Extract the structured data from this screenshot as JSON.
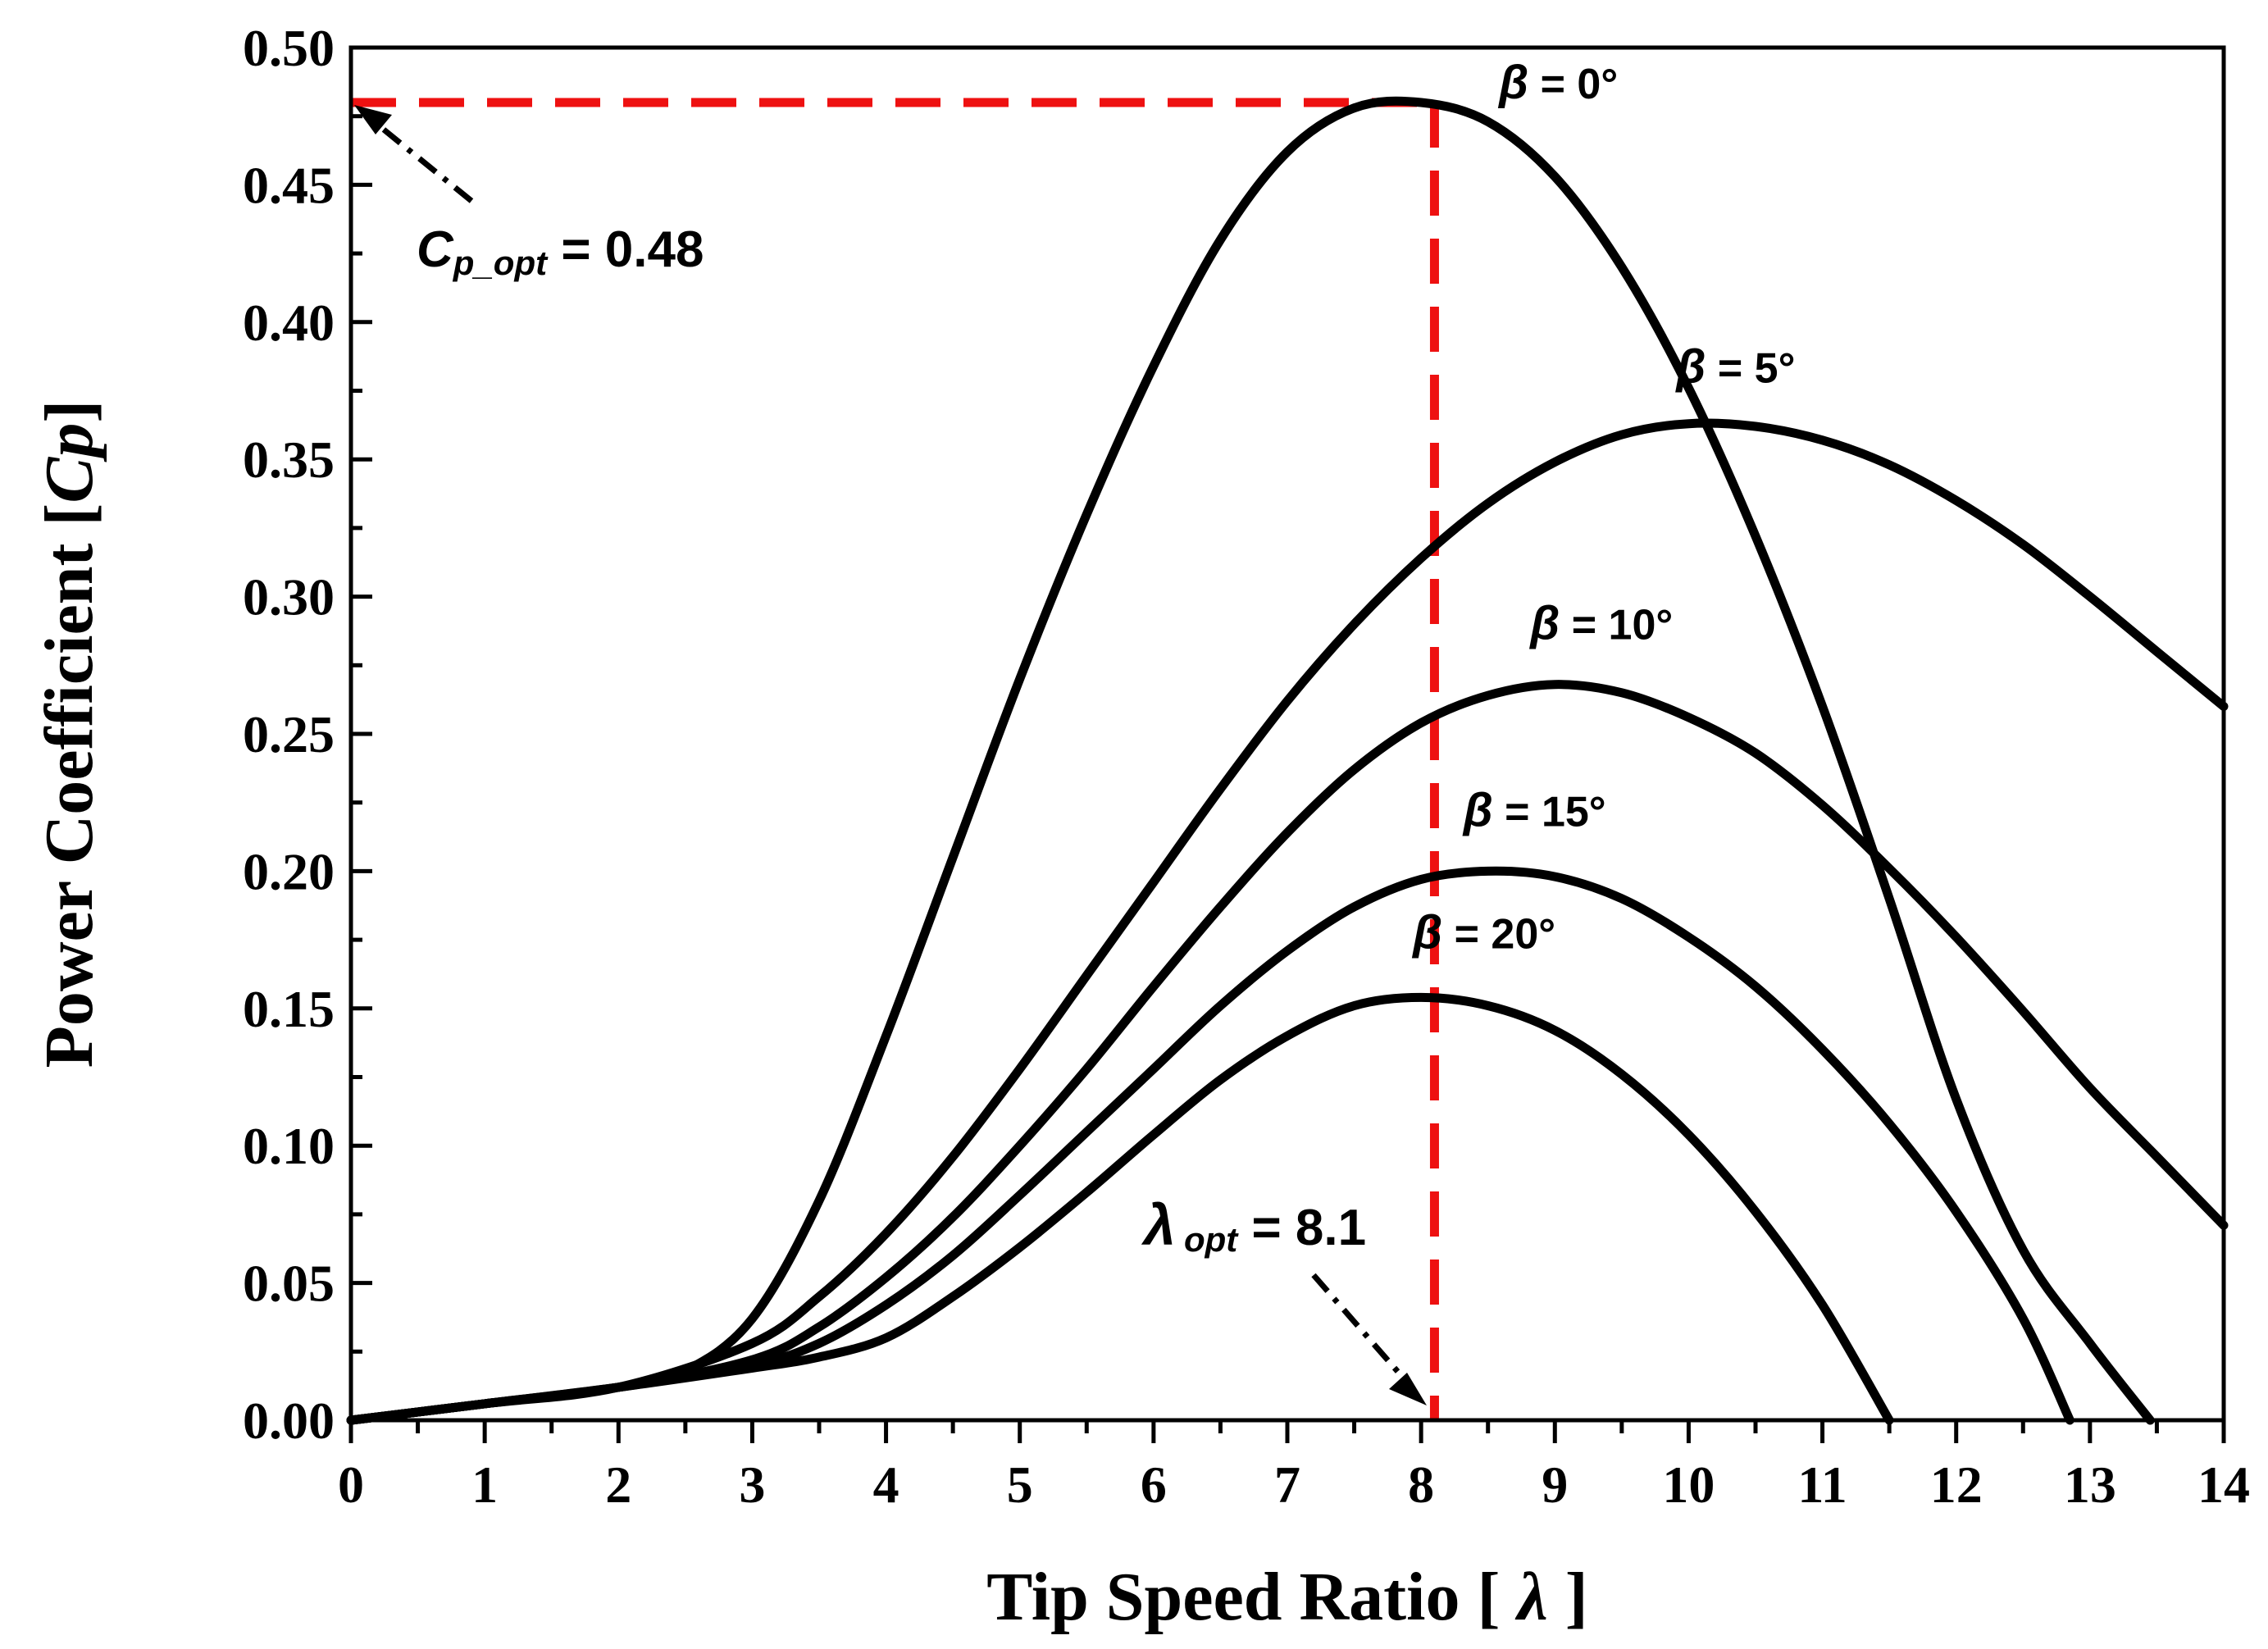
{
  "chart_data": {
    "type": "line",
    "title": "",
    "xlabel": "Tip Speed Ratio",
    "ylabel": "Power Coefficient",
    "x_var": "λ",
    "y_var": "Cp",
    "xlim": [
      0,
      14
    ],
    "ylim": [
      0,
      0.5
    ],
    "x_ticks": [
      "0",
      "1",
      "2",
      "3",
      "4",
      "5",
      "6",
      "7",
      "8",
      "9",
      "10",
      "11",
      "12",
      "13",
      "14"
    ],
    "y_ticks": [
      "0.00",
      "0.05",
      "0.10",
      "0.15",
      "0.20",
      "0.25",
      "0.30",
      "0.35",
      "0.40",
      "0.45",
      "0.50"
    ],
    "series": [
      {
        "name": "β = 0°",
        "beta": "0°",
        "x": [
          0,
          1,
          2,
          2.5,
          3,
          3.5,
          4,
          4.5,
          5,
          5.5,
          6,
          6.5,
          7,
          7.5,
          8,
          8.5,
          9,
          9.5,
          10,
          10.5,
          11,
          11.5,
          12,
          12.5,
          13,
          13.45
        ],
        "y": [
          0,
          0.006,
          0.012,
          0.018,
          0.037,
          0.08,
          0.14,
          0.205,
          0.27,
          0.33,
          0.384,
          0.43,
          0.462,
          0.478,
          0.48,
          0.473,
          0.453,
          0.42,
          0.376,
          0.322,
          0.26,
          0.19,
          0.117,
          0.062,
          0.028,
          0
        ]
      },
      {
        "name": "β = 5°",
        "beta": "5°",
        "x": [
          0,
          1,
          2,
          3,
          3.5,
          4,
          4.5,
          5,
          5.5,
          6,
          6.5,
          7,
          7.5,
          8,
          8.5,
          9,
          9.5,
          10,
          10.5,
          11,
          11.5,
          12,
          12.5,
          13,
          13.5,
          14
        ],
        "y": [
          0,
          0.006,
          0.012,
          0.028,
          0.045,
          0.068,
          0.096,
          0.128,
          0.162,
          0.196,
          0.23,
          0.262,
          0.29,
          0.314,
          0.334,
          0.349,
          0.359,
          0.363,
          0.362,
          0.357,
          0.348,
          0.335,
          0.319,
          0.3,
          0.28,
          0.26
        ]
      },
      {
        "name": "β = 10°",
        "beta": "10°",
        "x": [
          0,
          1,
          2,
          3,
          3.5,
          4,
          4.5,
          5,
          5.5,
          6,
          6.5,
          7,
          7.5,
          8,
          8.5,
          9,
          9.5,
          10,
          10.5,
          11,
          11.5,
          12,
          12.5,
          13,
          13.5,
          14
        ],
        "y": [
          0,
          0.006,
          0.012,
          0.022,
          0.034,
          0.052,
          0.074,
          0.1,
          0.128,
          0.158,
          0.187,
          0.214,
          0.237,
          0.254,
          0.264,
          0.268,
          0.265,
          0.256,
          0.243,
          0.224,
          0.201,
          0.176,
          0.149,
          0.121,
          0.096,
          0.071
        ]
      },
      {
        "name": "β = 15°",
        "beta": "15°",
        "x": [
          0,
          1,
          2,
          3,
          3.5,
          4,
          4.5,
          5,
          5.5,
          6,
          6.5,
          7,
          7.5,
          8,
          8.5,
          9,
          9.5,
          10,
          10.5,
          11,
          11.5,
          12,
          12.5,
          12.85
        ],
        "y": [
          0,
          0.006,
          0.012,
          0.02,
          0.028,
          0.042,
          0.06,
          0.082,
          0.105,
          0.128,
          0.151,
          0.171,
          0.187,
          0.197,
          0.2,
          0.198,
          0.19,
          0.176,
          0.158,
          0.135,
          0.108,
          0.076,
          0.037,
          0
        ]
      },
      {
        "name": "β = 20°",
        "beta": "20°",
        "x": [
          0,
          1,
          2,
          3,
          3.5,
          4,
          4.5,
          5,
          5.5,
          6,
          6.5,
          7,
          7.5,
          8,
          8.5,
          9,
          9.5,
          10,
          10.5,
          11,
          11.5
        ],
        "y": [
          0,
          0.006,
          0.012,
          0.019,
          0.023,
          0.03,
          0.045,
          0.063,
          0.083,
          0.104,
          0.124,
          0.14,
          0.151,
          0.154,
          0.151,
          0.142,
          0.126,
          0.104,
          0.076,
          0.042,
          0
        ]
      }
    ],
    "annotations": [
      {
        "id": "cp_opt",
        "label": "C",
        "sub": "p_opt",
        "value": "0.48",
        "eq": " = ",
        "target_x": 0,
        "target_y": 0.48
      },
      {
        "id": "lambda_opt",
        "label": "λ",
        "sub": "opt",
        "value": "8.1",
        "eq": " = ",
        "target_x": 8.1,
        "target_y": 0
      }
    ],
    "reference_point": {
      "x": 8.1,
      "y": 0.48,
      "color": "#ee1111"
    }
  }
}
